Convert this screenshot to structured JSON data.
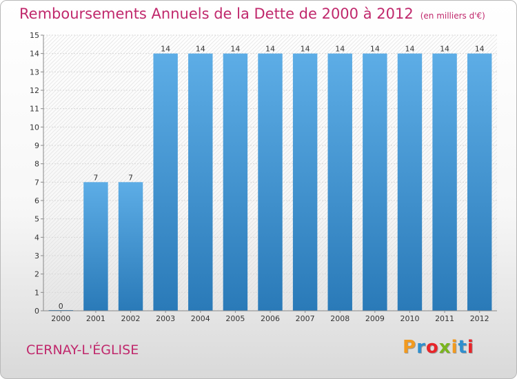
{
  "header": {
    "title": "Remboursements Annuels de la Dette de 2000 à 2012",
    "unit": "(en milliers d'€)"
  },
  "footer": {
    "commune": "CERNAY-L'ÉGLISE",
    "logo_letters": [
      "P",
      "r",
      "o",
      "x",
      "i",
      "t",
      "i"
    ],
    "logo_colors": [
      "#f29a1f",
      "#2f8fce",
      "#e8252a",
      "#7ab51d",
      "#f29a1f",
      "#2f8fce",
      "#e8252a"
    ]
  },
  "colors": {
    "bar_top": "#5dade6",
    "bar_bottom": "#2a7ab8",
    "grid": "#d8d8d8",
    "axis_text": "#333333",
    "title": "#c0286c"
  },
  "chart_data": {
    "type": "bar",
    "categories": [
      "2000",
      "2001",
      "2002",
      "2003",
      "2004",
      "2005",
      "2006",
      "2007",
      "2008",
      "2009",
      "2010",
      "2011",
      "2012"
    ],
    "values": [
      0,
      7,
      7,
      14,
      14,
      14,
      14,
      14,
      14,
      14,
      14,
      14,
      14
    ],
    "data_labels": [
      "0",
      "7",
      "7",
      "14",
      "14",
      "14",
      "14",
      "14",
      "14",
      "14",
      "14",
      "14",
      "14"
    ],
    "ylim": [
      0,
      15
    ],
    "yticks": [
      0,
      1,
      2,
      3,
      4,
      5,
      6,
      7,
      8,
      9,
      10,
      11,
      12,
      13,
      14,
      15
    ],
    "grid": true,
    "title": "Remboursements Annuels de la Dette de 2000 à 2012",
    "xlabel": "",
    "ylabel": ""
  }
}
